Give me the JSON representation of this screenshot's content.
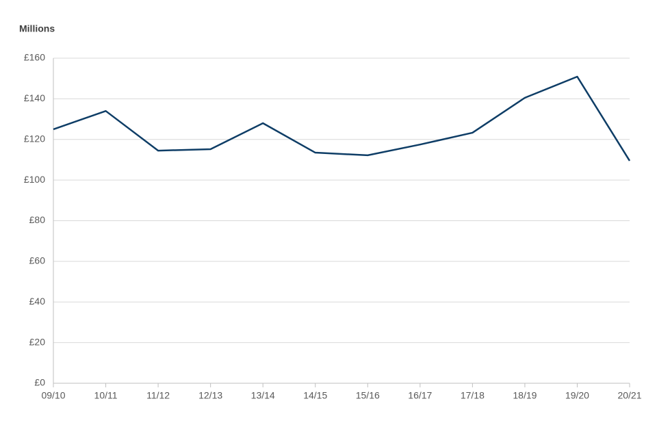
{
  "chart_data": {
    "type": "line",
    "y_label": "Millions",
    "categories": [
      "09/10",
      "10/11",
      "11/12",
      "12/13",
      "13/14",
      "14/15",
      "15/16",
      "16/17",
      "17/18",
      "18/19",
      "19/20",
      "20/21"
    ],
    "series": [
      {
        "name": "Value",
        "color": "#0e3d66",
        "values": [
          125.0,
          134.0,
          114.5,
          115.2,
          128.0,
          113.5,
          112.2,
          117.5,
          123.3,
          140.5,
          150.9,
          109.5
        ]
      }
    ],
    "ylim": [
      0,
      160
    ],
    "yticks": [
      {
        "value": 0,
        "label": "£0"
      },
      {
        "value": 20,
        "label": "£20"
      },
      {
        "value": 40,
        "label": "£40"
      },
      {
        "value": 60,
        "label": "£60"
      },
      {
        "value": 80,
        "label": "£80"
      },
      {
        "value": 100,
        "label": "£100"
      },
      {
        "value": 120,
        "label": "£120"
      },
      {
        "value": 140,
        "label": "£140"
      },
      {
        "value": 160,
        "label": "£160"
      }
    ],
    "grid": true
  }
}
